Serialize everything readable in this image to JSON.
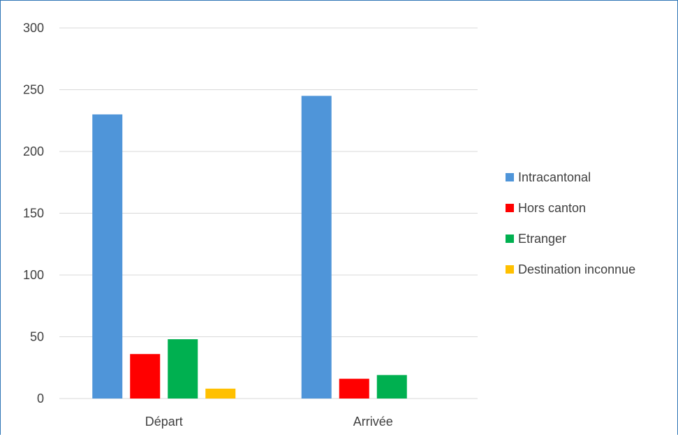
{
  "chart_data": {
    "type": "bar",
    "title": "",
    "xlabel": "",
    "ylabel": "",
    "categories": [
      "Départ",
      "Arrivée"
    ],
    "ylim": [
      0,
      300
    ],
    "yticks": [
      0,
      50,
      100,
      150,
      200,
      250,
      300
    ],
    "grid": true,
    "legend_position": "right",
    "series": [
      {
        "name": "Intracantonal",
        "color": "#4f95d9",
        "values": [
          230,
          245
        ]
      },
      {
        "name": "Hors canton",
        "color": "#ff0000",
        "values": [
          36,
          16
        ]
      },
      {
        "name": "Etranger",
        "color": "#00b050",
        "values": [
          48,
          19
        ]
      },
      {
        "name": "Destination inconnue",
        "color": "#ffc000",
        "values": [
          8,
          0
        ]
      }
    ]
  }
}
